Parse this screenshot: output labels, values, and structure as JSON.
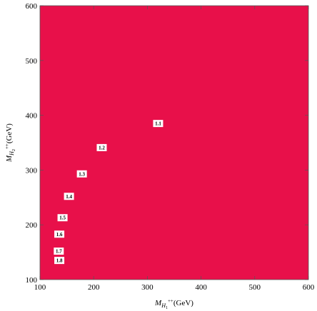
{
  "chart_data": {
    "type": "contour",
    "xlabel_main": "M",
    "xlabel_sub": "H",
    "xlabel_subsub": "1",
    "xlabel_sup": "++",
    "xlabel_unit": "(GeV)",
    "ylabel_main": "M",
    "ylabel_sub": "H",
    "ylabel_subsub": "2",
    "ylabel_sup": "++",
    "ylabel_unit": "(GeV)",
    "xlim": [
      100,
      600
    ],
    "ylim": [
      100,
      600
    ],
    "xticks": [
      100,
      200,
      300,
      400,
      500,
      600
    ],
    "yticks": [
      100,
      200,
      300,
      400,
      500,
      600
    ],
    "grid": false,
    "contour_levels": [
      {
        "level": "1.1",
        "color": "#e8191b",
        "asymptote": 95,
        "k": 15500
      },
      {
        "level": "1.2",
        "color": "#fbc400",
        "asymptote": 95,
        "k": 11000
      },
      {
        "level": "1.3",
        "color": "#a6e633",
        "asymptote": 95,
        "k": 5800
      },
      {
        "level": "1.4",
        "color": "#3ddb33",
        "asymptote": 95,
        "k": 2900
      },
      {
        "level": "1.5",
        "color": "#2de9c6",
        "asymptote": 95,
        "k": 1300
      },
      {
        "level": "1.6",
        "color": "#1b9be6",
        "asymptote": 95,
        "k": 620
      },
      {
        "level": "1.7",
        "color": "#3418d8",
        "asymptote": 95,
        "k": 220
      },
      {
        "level": "1.8",
        "color": "#c41fd0",
        "asymptote": 95,
        "k": 90
      },
      {
        "level": "",
        "color": "#e8104a",
        "asymptote": 95,
        "k": 20
      }
    ],
    "contour_labels": [
      {
        "text": "1.1",
        "x": 320,
        "y": 385
      },
      {
        "text": "1.2",
        "x": 215,
        "y": 341
      },
      {
        "text": "1.3",
        "x": 178,
        "y": 293
      },
      {
        "text": "1.4",
        "x": 154,
        "y": 252
      },
      {
        "text": "1.5",
        "x": 142,
        "y": 213
      },
      {
        "text": "1.6",
        "x": 136,
        "y": 183
      },
      {
        "text": "1.7",
        "x": 135,
        "y": 152
      },
      {
        "text": "1.8",
        "x": 136,
        "y": 135
      }
    ]
  }
}
